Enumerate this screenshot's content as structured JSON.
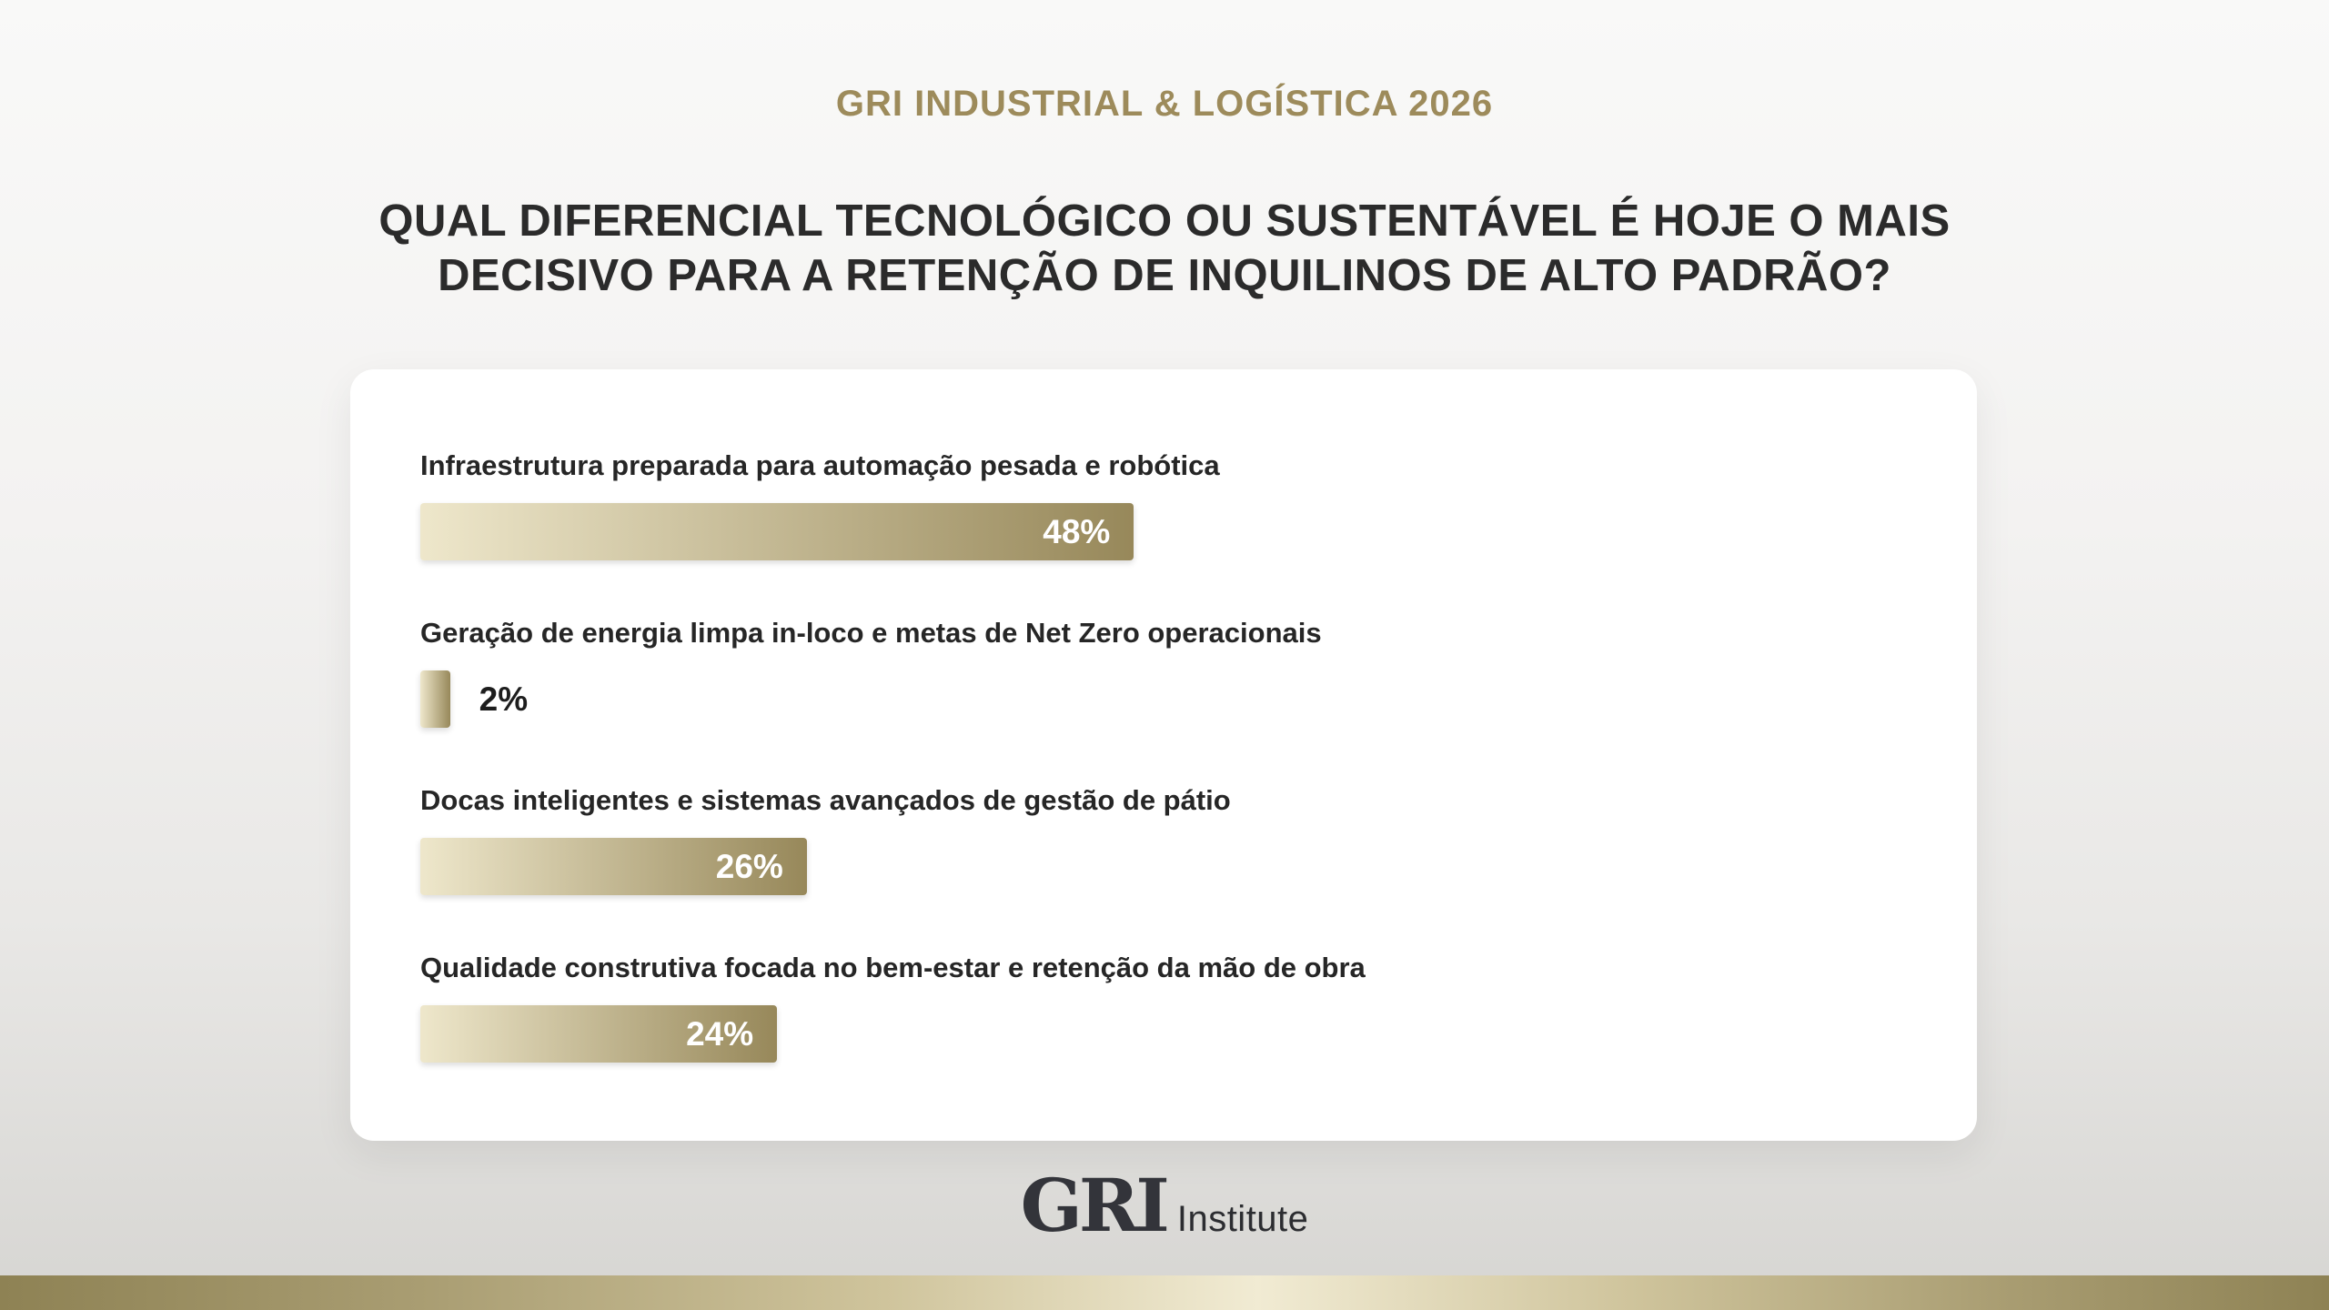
{
  "header": {
    "eyebrow": "GRI INDUSTRIAL & LOGÍSTICA 2026"
  },
  "title": {
    "line1": "QUAL DIFERENCIAL TECNOLÓGICO OU SUSTENTÁVEL É HOJE O MAIS",
    "line2": "DECISIVO PARA A RETENÇÃO DE INQUILINOS DE ALTO PADRÃO?"
  },
  "poll": {
    "options": [
      {
        "label": "Infraestrutura preparada para automação pesada e robótica",
        "value": 48,
        "percent_label": "48%"
      },
      {
        "label": "Geração de energia limpa in-loco e metas de Net Zero operacionais",
        "value": 2,
        "percent_label": "2%"
      },
      {
        "label": "Docas inteligentes e sistemas avançados de gestão de pátio",
        "value": 26,
        "percent_label": "26%"
      },
      {
        "label": "Qualidade construtiva focada no bem-estar e retenção da mão de obra",
        "value": 24,
        "percent_label": "24%"
      }
    ]
  },
  "footer": {
    "logo_main": "GRI",
    "logo_sub": "Institute"
  },
  "colors": {
    "accent_gold": "#9d8b5b",
    "title_text": "#2b2b2b",
    "bar_gradient_start": "#eee7cb",
    "bar_gradient_end": "#97885a",
    "percent_inside_text": "#ffffff",
    "percent_outside_text": "#1d1d1d",
    "card_background": "#ffffff"
  },
  "chart_data": {
    "type": "bar",
    "orientation": "horizontal",
    "title": "QUAL DIFERENCIAL TECNOLÓGICO OU SUSTENTÁVEL É HOJE O MAIS DECISIVO PARA A RETENÇÃO DE INQUILINOS DE ALTO PADRÃO?",
    "subtitle": "GRI INDUSTRIAL & LOGÍSTICA 2026",
    "categories": [
      "Infraestrutura preparada para automação pesada e robótica",
      "Geração de energia limpa in-loco e metas de Net Zero operacionais",
      "Docas inteligentes e sistemas avançados de gestão de pátio",
      "Qualidade construtiva focada no bem-estar e retenção da mão de obra"
    ],
    "values": [
      48,
      2,
      26,
      24
    ],
    "value_unit": "%",
    "xlim": [
      0,
      100
    ],
    "xlabel": "",
    "ylabel": "",
    "grid": false,
    "legend": false,
    "data_labels": [
      "48%",
      "2%",
      "26%",
      "24%"
    ]
  }
}
